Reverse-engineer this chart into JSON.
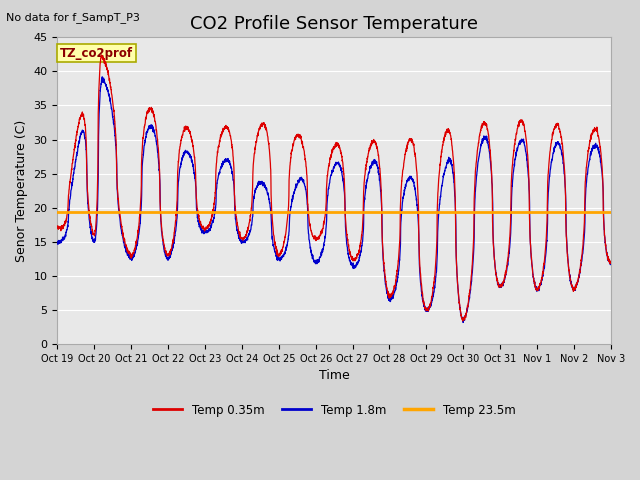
{
  "title": "CO2 Profile Sensor Temperature",
  "ylabel": "Senor Temperature (C)",
  "xlabel": "Time",
  "no_data_text": "No data for f_SampT_P3",
  "legend_label_text": "TZ_co2prof",
  "plot_bg_color": "#e8e8e8",
  "fig_bg_color": "#d4d4d4",
  "ylim": [
    0,
    45
  ],
  "hline_value": 19.3,
  "hline_color": "#FFA500",
  "line_red_color": "#DD0000",
  "line_blue_color": "#0000CC",
  "legend_entries": [
    "Temp 0.35m",
    "Temp 1.8m",
    "Temp 23.5m"
  ],
  "legend_colors": [
    "#DD0000",
    "#0000CC",
    "#FFA500"
  ],
  "xtick_labels": [
    "Oct 19",
    "Oct 20",
    "Oct 21",
    "Oct 22",
    "Oct 23",
    "Oct 24",
    "Oct 25",
    "Oct 26",
    "Oct 27",
    "Oct 28",
    "Oct 29",
    "Oct 30",
    "Oct 31",
    "Nov 1",
    "Nov 2",
    "Nov 3"
  ],
  "title_fontsize": 13,
  "label_fontsize": 9,
  "tick_fontsize": 8,
  "grid_color": "#ffffff",
  "yticks": [
    0,
    5,
    10,
    15,
    20,
    25,
    30,
    35,
    40,
    45
  ],
  "red_peaks": [
    17.0,
    43.5,
    37.5,
    32.0,
    31.5,
    32.0,
    32.5,
    29.0,
    29.5,
    30.0,
    30.0,
    32.5,
    32.5,
    33.0,
    31.5,
    31.5
  ],
  "red_troughs": [
    17.0,
    16.0,
    13.0,
    13.0,
    17.0,
    15.5,
    13.0,
    15.5,
    12.5,
    7.0,
    5.0,
    3.5,
    8.5,
    8.0,
    8.0,
    12.0
  ],
  "blue_peaks": [
    15.0,
    40.0,
    35.0,
    29.5,
    27.0,
    27.0,
    21.0,
    26.5,
    26.5,
    27.0,
    22.5,
    30.0,
    30.5,
    29.5,
    29.5,
    29.0
  ],
  "blue_troughs": [
    15.0,
    15.0,
    12.5,
    12.5,
    16.5,
    15.0,
    12.5,
    12.0,
    11.5,
    6.5,
    5.0,
    3.5,
    8.5,
    8.0,
    8.0,
    12.0
  ],
  "red_peak_phase": [
    0.58,
    0.2,
    0.55,
    0.5,
    0.58,
    0.58,
    0.55,
    0.58,
    0.58,
    0.58,
    0.58,
    0.58,
    0.58,
    0.55,
    0.58,
    0.58
  ],
  "blue_peak_phase": [
    0.6,
    0.22,
    0.57,
    0.52,
    0.6,
    0.6,
    0.57,
    0.6,
    0.6,
    0.6,
    0.6,
    0.6,
    0.6,
    0.57,
    0.6,
    0.6
  ]
}
